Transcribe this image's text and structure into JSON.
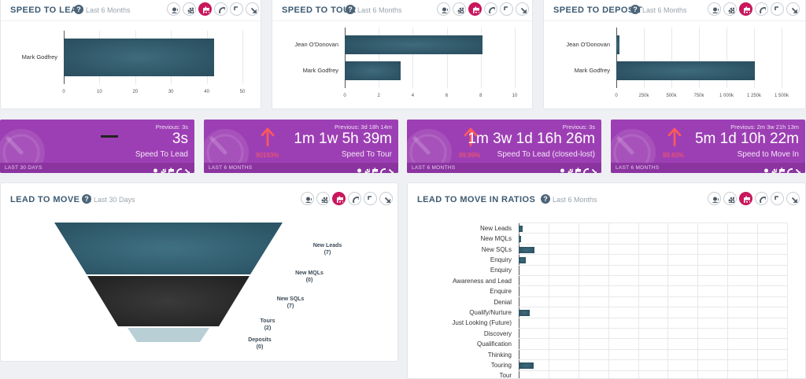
{
  "colors": {
    "accent": "#c8175d",
    "bar": "#2e5566",
    "kpi": "#9d3fb4",
    "title": "#3c5a72"
  },
  "speed_to_lead": {
    "title": "SPEED TO LEAD",
    "period": "Last 6 Months",
    "chart_data": {
      "type": "bar",
      "orientation": "horizontal",
      "categories": [
        "Mark Godfrey"
      ],
      "values": [
        42
      ],
      "xlim": [
        0,
        50
      ],
      "xticks": [
        "0",
        "10",
        "20",
        "30",
        "40",
        "50"
      ]
    }
  },
  "speed_to_tour": {
    "title": "SPEED TO TOUR",
    "period": "Last 6 Months",
    "chart_data": {
      "type": "bar",
      "orientation": "horizontal",
      "categories": [
        "Jean O'Donovan",
        "Mark Godfrey"
      ],
      "values": [
        8.1,
        3.3
      ],
      "xlim": [
        0,
        10
      ],
      "xticks": [
        "0",
        "2",
        "4",
        "6",
        "8",
        "10"
      ]
    }
  },
  "speed_to_deposit": {
    "title": "SPEED TO DEPOSIT",
    "period": "Last 6 Months",
    "chart_data": {
      "type": "bar",
      "orientation": "horizontal",
      "categories": [
        "Jean O'Donovan",
        "Mark Godfrey"
      ],
      "values": [
        30000,
        1260000
      ],
      "xlim": [
        0,
        1500000
      ],
      "xticks": [
        "0",
        "250k",
        "500k",
        "750k",
        "1 000k",
        "1 250k",
        "1 500k"
      ]
    }
  },
  "kpis": [
    {
      "previous": "Previous: 3s",
      "value": "3s",
      "name": "Speed To Lead",
      "period": "LAST 30 DAYS",
      "change": "",
      "trend": "flat"
    },
    {
      "previous": "Previous: 3d 18h 14m",
      "value": "1m 1w 5h 39m",
      "name": "Speed To Tour",
      "period": "LAST 6 MONTHS",
      "change": "90193%",
      "trend": "up"
    },
    {
      "previous": "Previous: 3s",
      "value": "1m 3w 1d 16h 26m",
      "name": "Speed To Lead (closed-lost)",
      "period": "LAST 6 MONTHS",
      "change": "99.99%",
      "trend": "up"
    },
    {
      "previous": "Previous: 2m 3w 21h 13m",
      "value": "5m 1d 10h 22m",
      "name": "Speed to Move In",
      "period": "LAST 6 MONTHS",
      "change": "99.60%",
      "trend": "up"
    }
  ],
  "lead_to_move_in": {
    "title": "LEAD TO MOVE IN",
    "period": "Last 30 Days",
    "chart_data": {
      "type": "funnel",
      "stages": [
        {
          "name": "New Leads",
          "count": "(7)"
        },
        {
          "name": "New MQLs",
          "count": "(0)"
        },
        {
          "name": "New SQLs",
          "count": "(7)"
        },
        {
          "name": "Tours",
          "count": "(2)"
        },
        {
          "name": "Deposits",
          "count": "(0)"
        }
      ]
    }
  },
  "ratios": {
    "title": "LEAD TO MOVE IN RATIOS",
    "period": "Last 6 Months",
    "chart_data": {
      "type": "bar",
      "orientation": "horizontal",
      "categories": [
        "New Leads",
        "New MQLs",
        "New SQLs",
        "Enquiry",
        "Enquiry",
        "Awareness and Lead",
        "Enquire",
        "Denial",
        "Qualify/Nurture",
        "Just Looking (Future)",
        "Discovery",
        "Qualification",
        "Thinking",
        "Touring",
        "Tour"
      ],
      "values": [
        3,
        2,
        12,
        5,
        0,
        0,
        0,
        0,
        8,
        0,
        0,
        0,
        0,
        11,
        0
      ],
      "xlim": [
        0,
        200
      ]
    }
  }
}
